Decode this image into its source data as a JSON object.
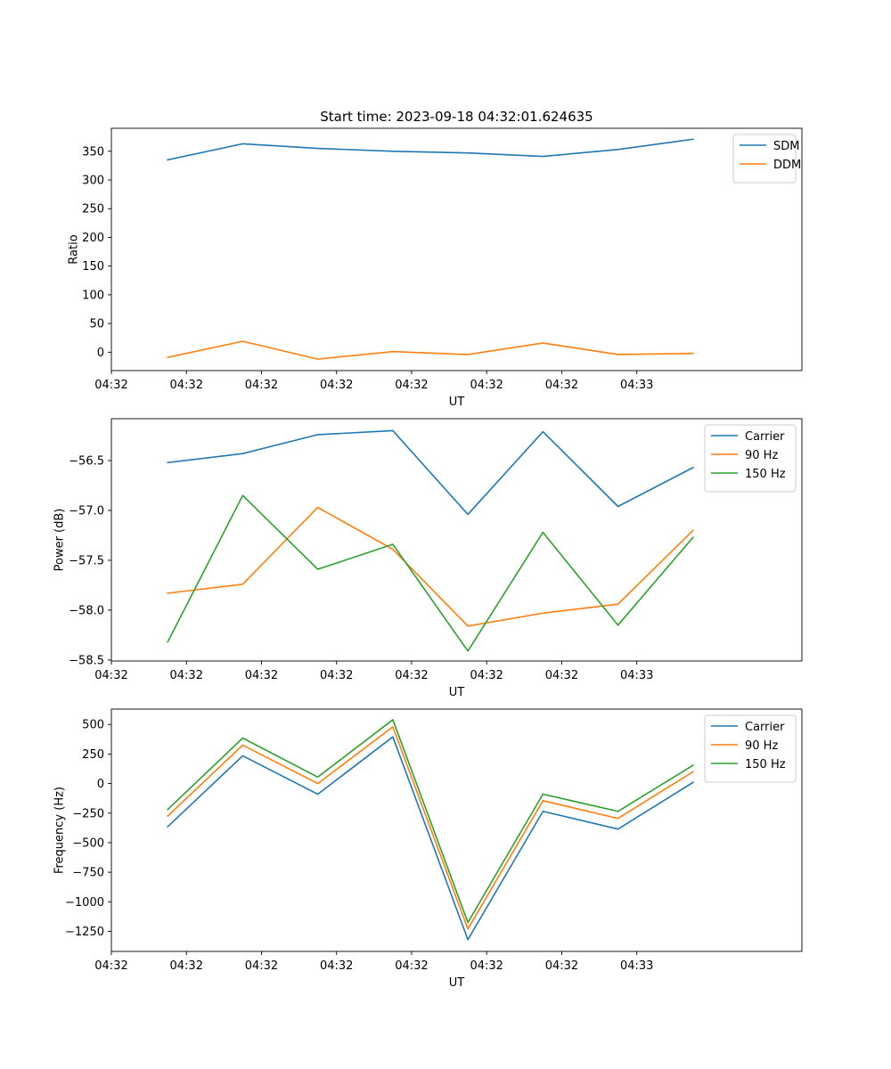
{
  "figure": {
    "title": "Start time: 2023-09-18 04:32:01.624635"
  },
  "chart_data": [
    {
      "type": "line",
      "title": "Start time: 2023-09-18 04:32:01.624635",
      "xlabel": "UT",
      "ylabel": "Ratio",
      "x_tick_labels": [
        "04:32",
        "04:32",
        "04:32",
        "04:32",
        "04:32",
        "04:32",
        "04:32",
        "04:33"
      ],
      "xlim": [
        -0.5,
        8.7
      ],
      "x": [
        0.25,
        1.25,
        2.25,
        3.25,
        4.25,
        5.25,
        6.25,
        7.25
      ],
      "ylim": [
        -32,
        390
      ],
      "y_ticks": [
        0,
        50,
        100,
        150,
        200,
        250,
        300,
        350
      ],
      "y_tick_labels": [
        "0",
        "50",
        "100",
        "150",
        "200",
        "250",
        "300",
        "350"
      ],
      "legend_position": "top-right",
      "series": [
        {
          "name": "SDM",
          "color": "#1f77b4",
          "values": [
            335,
            363,
            355,
            350,
            347,
            341,
            353,
            371
          ]
        },
        {
          "name": "DDM",
          "color": "#ff7f0e",
          "values": [
            -9,
            19,
            -12,
            1,
            -4,
            16,
            -4,
            -2
          ]
        }
      ]
    },
    {
      "type": "line",
      "title": "",
      "xlabel": "UT",
      "ylabel": "Power (dB)",
      "x_tick_labels": [
        "04:32",
        "04:32",
        "04:32",
        "04:32",
        "04:32",
        "04:32",
        "04:32",
        "04:33"
      ],
      "xlim": [
        -0.5,
        8.7
      ],
      "x": [
        0.25,
        1.25,
        2.25,
        3.25,
        4.25,
        5.25,
        6.25,
        7.25
      ],
      "ylim": [
        -58.51,
        -56.08
      ],
      "y_ticks": [
        -58.5,
        -58.0,
        -57.5,
        -57.0,
        -56.5
      ],
      "y_tick_labels": [
        "−58.5",
        "−58.0",
        "−57.5",
        "−57.0",
        "−56.5"
      ],
      "legend_position": "top-right",
      "series": [
        {
          "name": "Carrier",
          "color": "#1f77b4",
          "values": [
            -56.52,
            -56.43,
            -56.24,
            -56.2,
            -57.04,
            -56.21,
            -56.96,
            -56.57
          ]
        },
        {
          "name": "90 Hz",
          "color": "#ff7f0e",
          "values": [
            -57.83,
            -57.74,
            -56.97,
            -57.39,
            -58.16,
            -58.03,
            -57.94,
            -57.2
          ]
        },
        {
          "name": "150 Hz",
          "color": "#2ca02c",
          "values": [
            -58.32,
            -56.85,
            -57.59,
            -57.34,
            -58.41,
            -57.22,
            -58.15,
            -57.27
          ]
        }
      ]
    },
    {
      "type": "line",
      "title": "",
      "xlabel": "UT",
      "ylabel": "Frequency (Hz)",
      "x_tick_labels": [
        "04:32",
        "04:32",
        "04:32",
        "04:32",
        "04:32",
        "04:32",
        "04:32",
        "04:33"
      ],
      "xlim": [
        -0.5,
        8.7
      ],
      "x": [
        0.25,
        1.25,
        2.25,
        3.25,
        4.25,
        5.25,
        6.25,
        7.25
      ],
      "ylim": [
        -1420,
        630
      ],
      "y_ticks": [
        -1250,
        -1000,
        -750,
        -500,
        -250,
        0,
        250,
        500
      ],
      "y_tick_labels": [
        "−1250",
        "−1000",
        "−750",
        "−500",
        "−250",
        "0",
        "250",
        "500"
      ],
      "legend_position": "top-right",
      "series": [
        {
          "name": "Carrier",
          "color": "#1f77b4",
          "values": [
            -365,
            235,
            -90,
            395,
            -1320,
            -235,
            -385,
            10
          ]
        },
        {
          "name": "90 Hz",
          "color": "#ff7f0e",
          "values": [
            -275,
            325,
            0,
            480,
            -1230,
            -145,
            -295,
            100
          ]
        },
        {
          "name": "150 Hz",
          "color": "#2ca02c",
          "values": [
            -220,
            385,
            55,
            540,
            -1175,
            -90,
            -235,
            155
          ]
        }
      ]
    }
  ]
}
